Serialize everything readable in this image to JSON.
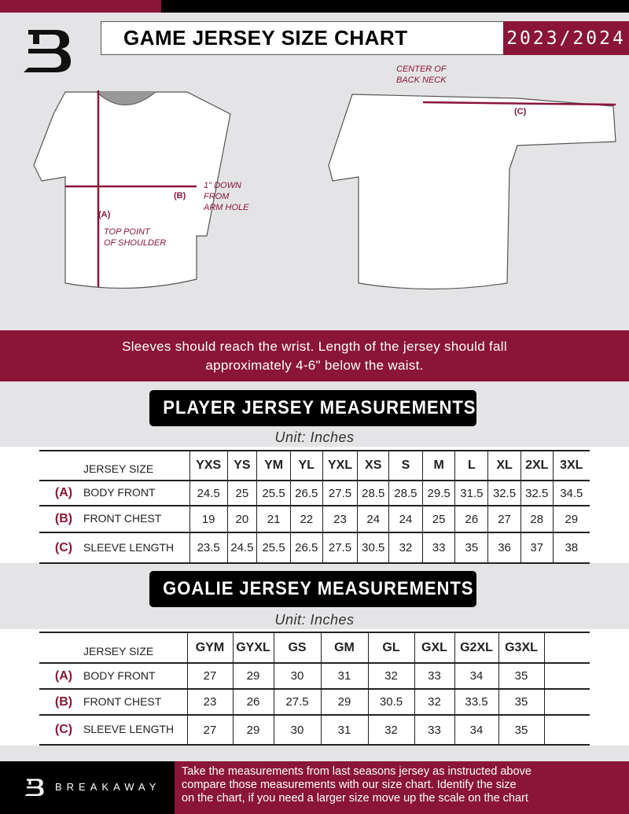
{
  "header": {
    "title": "GAME JERSEY SIZE CHART",
    "season": "2023/2024"
  },
  "diagram": {
    "center_back_neck": [
      "CENTER OF",
      "BACK NECK"
    ],
    "label_a": "(A)",
    "label_b": "(B)",
    "label_c": "(C)",
    "arm_hole": [
      "1\" DOWN",
      "FROM",
      "ARM HOLE"
    ],
    "top_shoulder": [
      "TOP POINT",
      "OF SHOULDER"
    ]
  },
  "banner": [
    "Sleeves should reach the wrist. Length of the jersey should fall",
    "approximately 4-6\" below the waist."
  ],
  "player": {
    "title": "PLAYER JERSEY MEASUREMENTS",
    "unit": "Unit: Inches",
    "header": "JERSEY SIZE",
    "sizes": [
      "YXS",
      "YS",
      "YM",
      "YL",
      "YXL",
      "XS",
      "S",
      "M",
      "L",
      "XL",
      "2XL",
      "3XL"
    ],
    "rows": [
      {
        "letter": "(A)",
        "label": "BODY FRONT",
        "values": [
          "24.5",
          "25",
          "25.5",
          "26.5",
          "27.5",
          "28.5",
          "28.5",
          "29.5",
          "31.5",
          "32.5",
          "32.5",
          "34.5"
        ]
      },
      {
        "letter": "(B)",
        "label": "FRONT CHEST",
        "values": [
          "19",
          "20",
          "21",
          "22",
          "23",
          "24",
          "24",
          "25",
          "26",
          "27",
          "28",
          "29"
        ]
      },
      {
        "letter": "(C)",
        "label": "SLEEVE LENGTH",
        "values": [
          "23.5",
          "24.5",
          "25.5",
          "26.5",
          "27.5",
          "30.5",
          "32",
          "33",
          "35",
          "36",
          "37",
          "38"
        ]
      }
    ]
  },
  "goalie": {
    "title": "GOALIE JERSEY MEASUREMENTS",
    "unit": "Unit: Inches",
    "header": "JERSEY SIZE",
    "sizes": [
      "GYM",
      "GYXL",
      "GS",
      "GM",
      "GL",
      "GXL",
      "G2XL",
      "G3XL",
      ""
    ],
    "rows": [
      {
        "letter": "(A)",
        "label": "BODY FRONT",
        "values": [
          "27",
          "29",
          "30",
          "31",
          "32",
          "33",
          "34",
          "35",
          ""
        ]
      },
      {
        "letter": "(B)",
        "label": "FRONT CHEST",
        "values": [
          "23",
          "26",
          "27.5",
          "29",
          "30.5",
          "32",
          "33.5",
          "35",
          ""
        ]
      },
      {
        "letter": "(C)",
        "label": "SLEEVE LENGTH",
        "values": [
          "27",
          "29",
          "30",
          "31",
          "32",
          "33",
          "34",
          "35",
          ""
        ]
      }
    ]
  },
  "footer": {
    "brand": "BREAKAWAY",
    "message": [
      "Take the measurements from last seasons jersey as instructed above",
      "compare those measurements  with our size chart. Identify the size",
      "on the chart, if you need a larger size move up the scale on the chart"
    ]
  },
  "colors": {
    "accent": "#8a1538",
    "dark": "#000000",
    "background": "#e4e4e6"
  }
}
